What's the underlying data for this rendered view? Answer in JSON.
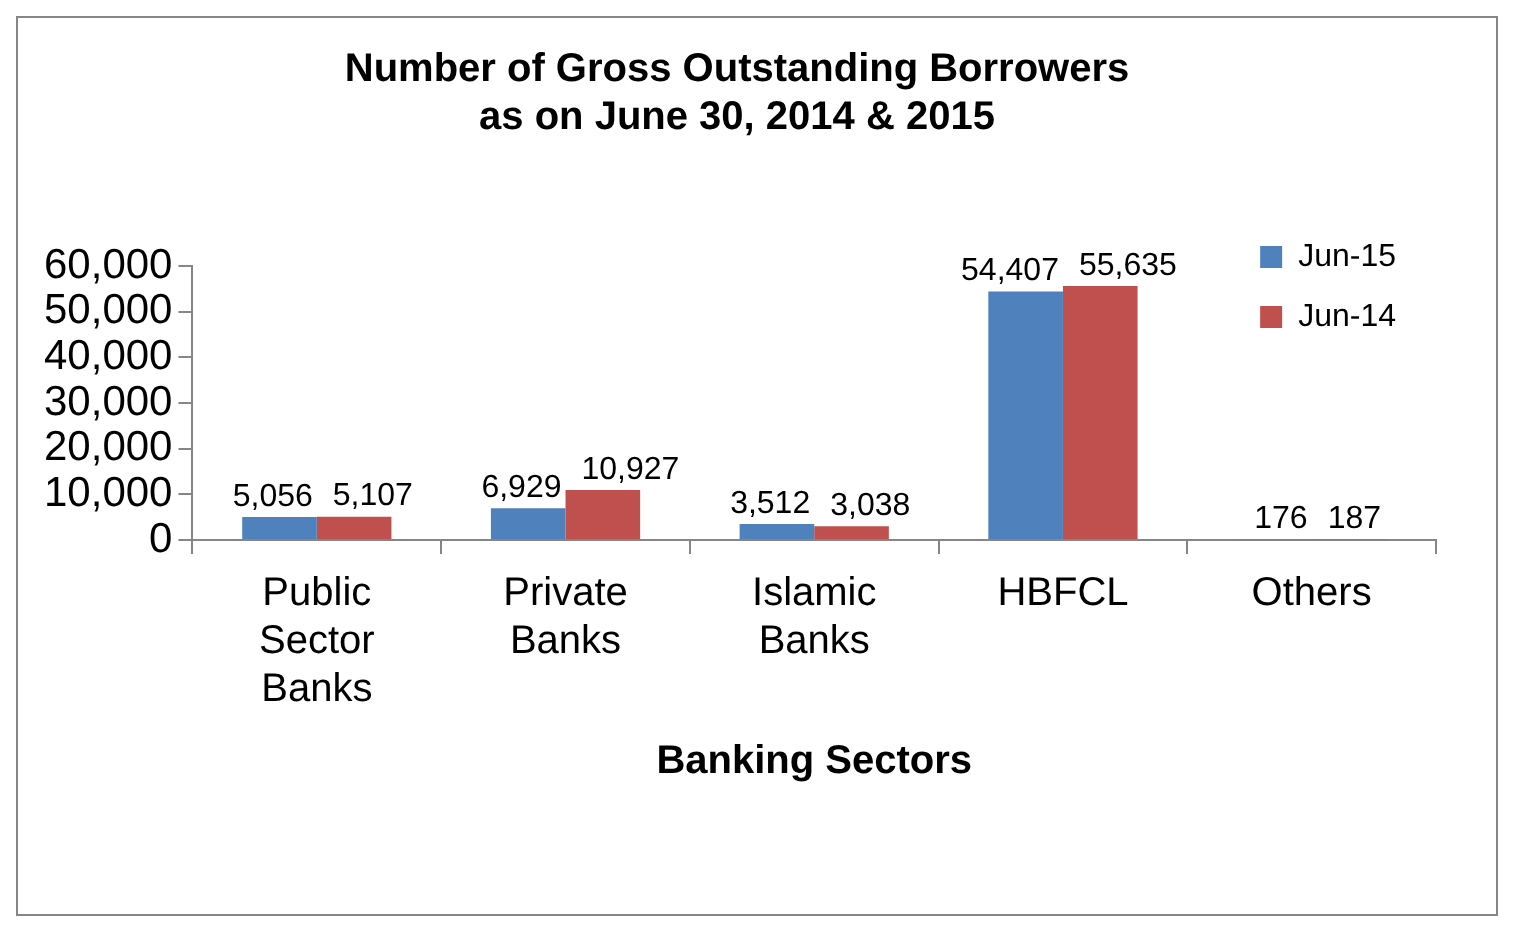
{
  "chart_data": {
    "type": "bar",
    "title": "Number of Gross Outstanding Borrowers as on June 30, 2014 & 2015",
    "xlabel": "Banking Sectors",
    "categories": [
      "Public Sector Banks",
      "Private Banks",
      "Islamic Banks",
      "HBFCL",
      "Others"
    ],
    "series": [
      {
        "name": "Jun-15",
        "color": "#4f81bd",
        "values": [
          5056,
          6929,
          3512,
          54407,
          176
        ],
        "value_labels": [
          "5,056",
          "6,929",
          "3,512",
          "54,407",
          "176"
        ]
      },
      {
        "name": "Jun-14",
        "color": "#c0504d",
        "values": [
          5107,
          10927,
          3038,
          55635,
          187
        ],
        "value_labels": [
          "5,107",
          "10,927",
          "3,038",
          "55,635",
          "187"
        ]
      }
    ],
    "ylim": [
      0,
      60000
    ],
    "yticks": [
      {
        "value": 0,
        "label": "0"
      },
      {
        "value": 10000,
        "label": "10,000"
      },
      {
        "value": 20000,
        "label": "20,000"
      },
      {
        "value": 30000,
        "label": "30,000"
      },
      {
        "value": 40000,
        "label": "40,000"
      },
      {
        "value": 50000,
        "label": "50,000"
      },
      {
        "value": 60000,
        "label": "60,000"
      }
    ],
    "grid": false,
    "legend": "top right"
  }
}
